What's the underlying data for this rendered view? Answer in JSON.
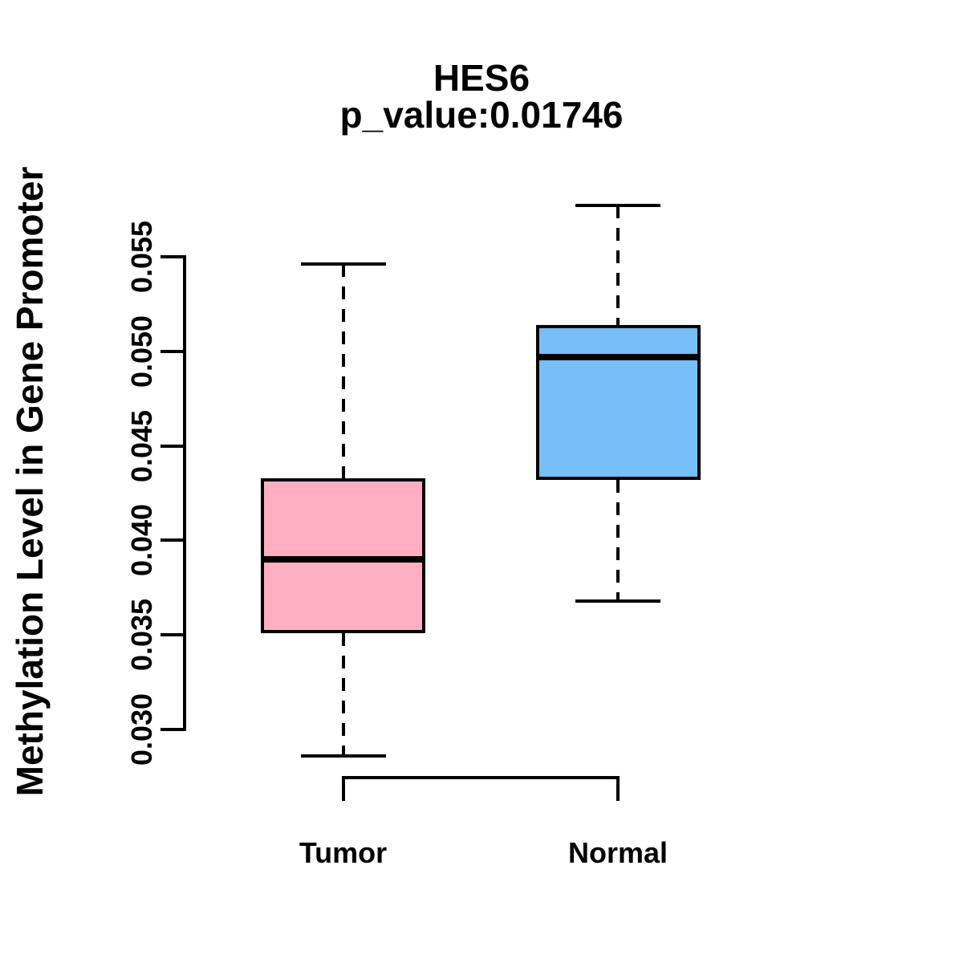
{
  "chart_data": {
    "type": "boxplot",
    "title": "HES6",
    "subtitle": "p_value:0.01746",
    "p_value": 0.01746,
    "ylabel": "Methylation Level in Gene Promoter",
    "xlabel": "",
    "categories": [
      "Tumor",
      "Normal"
    ],
    "ylim": [
      0.03,
      0.055
    ],
    "yticks": [
      0.03,
      0.035,
      0.04,
      0.045,
      0.05,
      0.055
    ],
    "ytick_labels": [
      "0.030",
      "0.035",
      "0.040",
      "0.045",
      "0.050",
      "0.055"
    ],
    "grid": false,
    "legend": "none",
    "stroke_color": "#000000",
    "series": [
      {
        "name": "Tumor",
        "fill": "#FFAFC1",
        "whisker_low": 0.0286,
        "q1": 0.0351,
        "median": 0.039,
        "q3": 0.0433,
        "whisker_high": 0.0546
      },
      {
        "name": "Normal",
        "fill": "#76BFF7",
        "whisker_low": 0.0368,
        "q1": 0.0432,
        "median": 0.0497,
        "q3": 0.0514,
        "whisker_high": 0.0577
      }
    ]
  }
}
